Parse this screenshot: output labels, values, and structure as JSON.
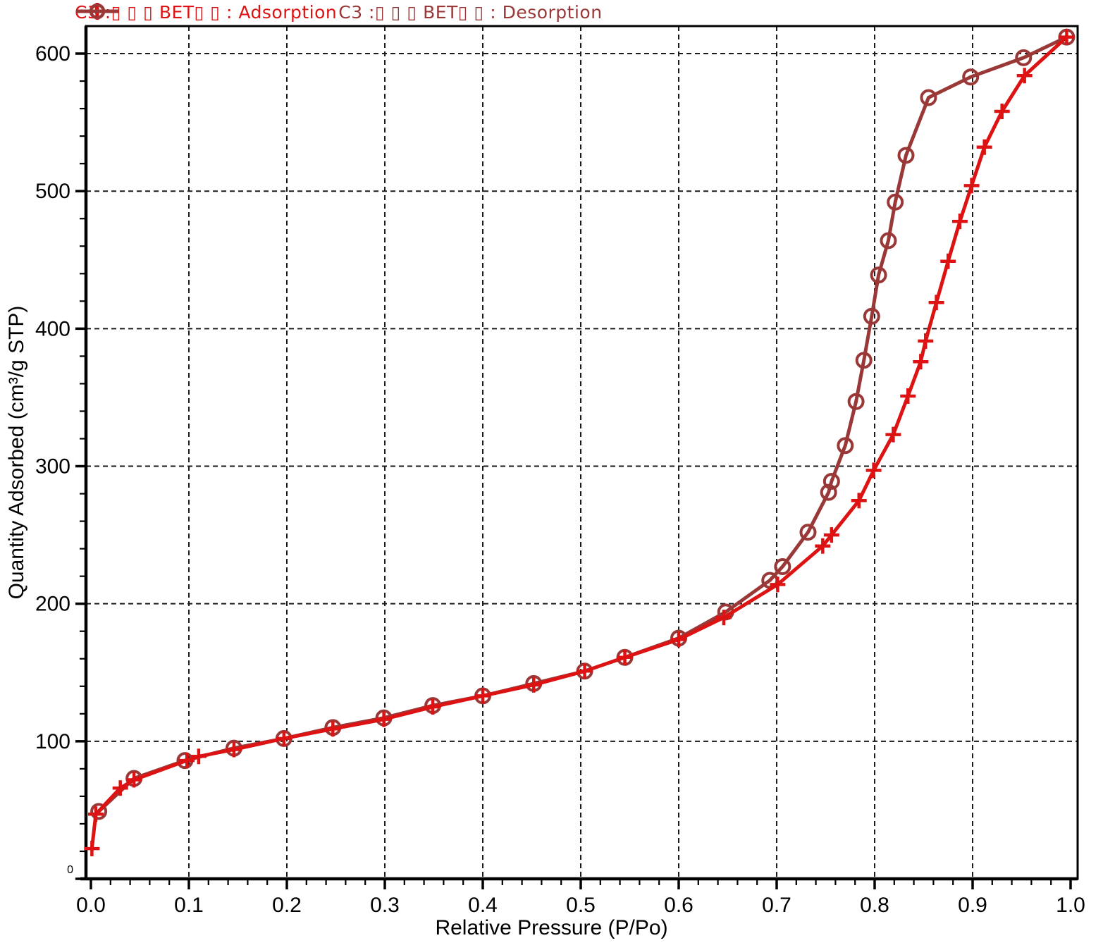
{
  "axes": {
    "xlabel": "Relative Pressure (P/Po)",
    "ylabel": "Quantity Adsorbed (cm³/g STP)",
    "origin_label": "0"
  },
  "legend": {
    "items": [
      {
        "label": "C3 :▯ ▯ ▯ BET▯ ▯  : Adsorption",
        "marker": "plus",
        "color": "#dd1313"
      },
      {
        "label": "C3 :▯ ▯ ▯ BET▯ ▯  : Desorption",
        "marker": "circle",
        "color": "#9a3838"
      }
    ]
  },
  "chart_data": {
    "type": "line",
    "title": "",
    "xlabel": "Relative Pressure (P/Po)",
    "ylabel": "Quantity Adsorbed (cm³/g STP)",
    "xlim": [
      0,
      1.007
    ],
    "ylim": [
      0,
      620
    ],
    "grid": "dashed-major-both-axes",
    "legend_position": "top-left",
    "x_ticks": [
      0.0,
      0.1,
      0.2,
      0.3,
      0.4,
      0.5,
      0.6,
      0.7,
      0.8,
      0.9,
      1.0
    ],
    "x_tick_labels": [
      "0.0",
      "0.1",
      "0.2",
      "0.3",
      "0.4",
      "0.5",
      "0.6",
      "0.7",
      "0.8",
      "0.9",
      "1.0"
    ],
    "x_minor_step": 0.02,
    "y_ticks": [
      0,
      100,
      200,
      300,
      400,
      500,
      600
    ],
    "y_tick_labels": [
      "0",
      "100",
      "200",
      "300",
      "400",
      "500",
      "600"
    ],
    "y_minor_step": 20,
    "series": [
      {
        "name": "C3 :▯ ▯ ▯ BET▯ ▯  : Adsorption",
        "marker": "plus",
        "color": "#dd1313",
        "points": [
          [
            0.001,
            22
          ],
          [
            0.005,
            47
          ],
          [
            0.03,
            66
          ],
          [
            0.044,
            72
          ],
          [
            0.098,
            86
          ],
          [
            0.11,
            89
          ],
          [
            0.146,
            94
          ],
          [
            0.197,
            102
          ],
          [
            0.247,
            109
          ],
          [
            0.299,
            116
          ],
          [
            0.349,
            125
          ],
          [
            0.4,
            133
          ],
          [
            0.452,
            141
          ],
          [
            0.504,
            151
          ],
          [
            0.545,
            161
          ],
          [
            0.6,
            174
          ],
          [
            0.646,
            190
          ],
          [
            0.701,
            214
          ],
          [
            0.747,
            242
          ],
          [
            0.756,
            250
          ],
          [
            0.784,
            275
          ],
          [
            0.799,
            297
          ],
          [
            0.819,
            323
          ],
          [
            0.834,
            351
          ],
          [
            0.847,
            376
          ],
          [
            0.852,
            391
          ],
          [
            0.863,
            419
          ],
          [
            0.875,
            449
          ],
          [
            0.887,
            478
          ],
          [
            0.899,
            504
          ],
          [
            0.912,
            532
          ],
          [
            0.93,
            558
          ],
          [
            0.953,
            584
          ],
          [
            0.996,
            612
          ]
        ]
      },
      {
        "name": "C3 :▯ ▯ ▯ BET▯ ▯  : Desorption",
        "marker": "circle",
        "color": "#9a3838",
        "points": [
          [
            0.008,
            49
          ],
          [
            0.044,
            73
          ],
          [
            0.096,
            86
          ],
          [
            0.146,
            95
          ],
          [
            0.197,
            102
          ],
          [
            0.247,
            110
          ],
          [
            0.299,
            117
          ],
          [
            0.349,
            126
          ],
          [
            0.4,
            133
          ],
          [
            0.452,
            142
          ],
          [
            0.504,
            151
          ],
          [
            0.545,
            161
          ],
          [
            0.6,
            175
          ],
          [
            0.648,
            194
          ],
          [
            0.693,
            217
          ],
          [
            0.706,
            227
          ],
          [
            0.732,
            252
          ],
          [
            0.753,
            281
          ],
          [
            0.756,
            289
          ],
          [
            0.77,
            315
          ],
          [
            0.781,
            347
          ],
          [
            0.789,
            377
          ],
          [
            0.797,
            409
          ],
          [
            0.804,
            439
          ],
          [
            0.814,
            464
          ],
          [
            0.821,
            492
          ],
          [
            0.832,
            526
          ],
          [
            0.855,
            568
          ],
          [
            0.898,
            583
          ],
          [
            0.952,
            597
          ],
          [
            0.996,
            612
          ]
        ]
      }
    ],
    "style": {
      "grid_color": "#1a1a1a",
      "axis_color": "#000000",
      "background": "#ffffff"
    }
  }
}
